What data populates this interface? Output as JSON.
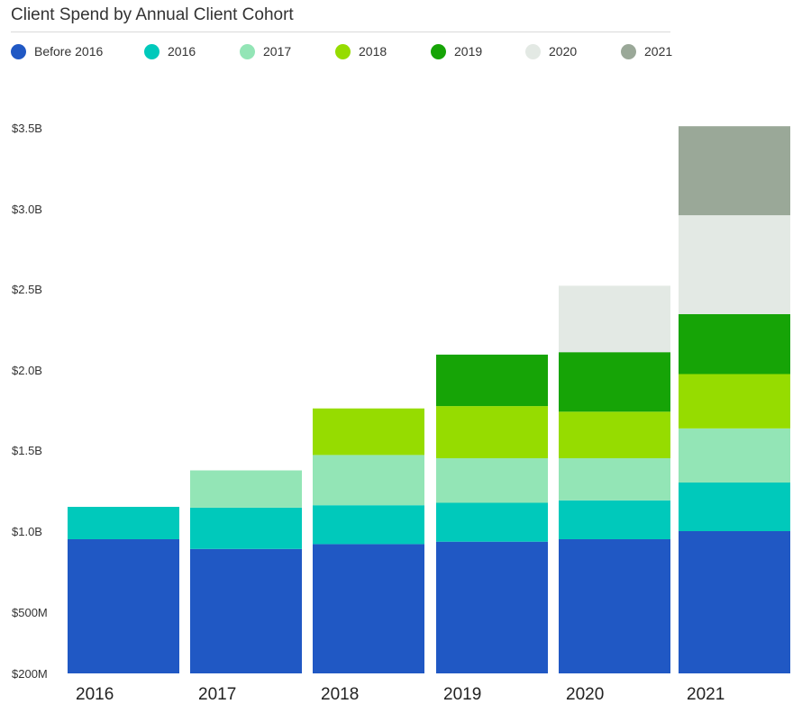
{
  "title": "Client Spend by Annual Client Cohort",
  "chart_data": {
    "type": "bar",
    "stacked": true,
    "title": "Client Spend by Annual Client Cohort",
    "xlabel": "",
    "ylabel": "",
    "categories": [
      "2016",
      "2017",
      "2018",
      "2019",
      "2020",
      "2021"
    ],
    "y_ticks": [
      {
        "value": 200,
        "label": "$200M"
      },
      {
        "value": 500,
        "label": "$500M"
      },
      {
        "value": 1000,
        "label": "$1.0B"
      },
      {
        "value": 1500,
        "label": "$1.5B"
      },
      {
        "value": 2000,
        "label": "$2.0B"
      },
      {
        "value": 2500,
        "label": "$2.5B"
      },
      {
        "value": 3000,
        "label": "$3.0B"
      },
      {
        "value": 3500,
        "label": "$3.5B"
      }
    ],
    "ylim": [
      200,
      3500
    ],
    "units": "USD millions",
    "grid": false,
    "legend_position": "top",
    "series": [
      {
        "name": "Before 2016",
        "color": "#2058c4",
        "values": [
          950,
          890,
          920,
          935,
          950,
          1000
        ]
      },
      {
        "name": "2016",
        "color": "#00c9bb",
        "values": [
          200,
          255,
          240,
          240,
          240,
          300
        ]
      },
      {
        "name": "2017",
        "color": "#93e5b6",
        "values": [
          null,
          230,
          310,
          275,
          260,
          335
        ]
      },
      {
        "name": "2018",
        "color": "#96dc00",
        "values": [
          null,
          null,
          290,
          325,
          290,
          340
        ]
      },
      {
        "name": "2019",
        "color": "#16a406",
        "values": [
          null,
          null,
          null,
          320,
          370,
          370
        ]
      },
      {
        "name": "2020",
        "color": "#e3e9e4",
        "values": [
          null,
          null,
          null,
          null,
          410,
          615
        ]
      },
      {
        "name": "2021",
        "color": "#9aa898",
        "values": [
          null,
          null,
          null,
          null,
          null,
          550
        ]
      }
    ]
  }
}
